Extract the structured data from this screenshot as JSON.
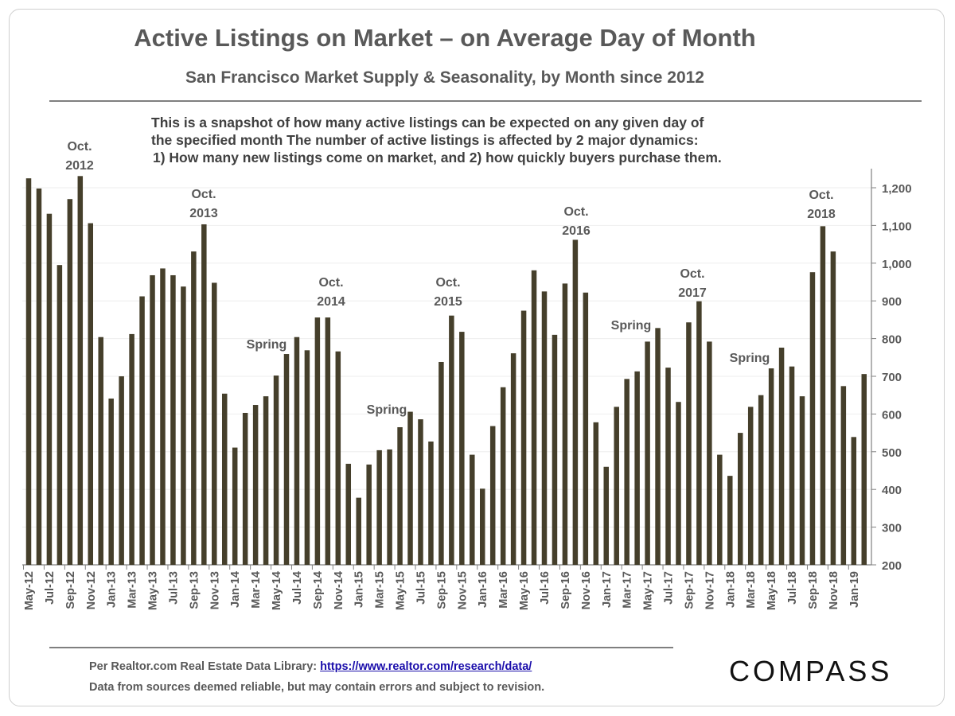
{
  "title": "Active Listings on Market – on Average Day of Month",
  "subtitle": "San Francisco Market Supply & Seasonality, by Month since 2012",
  "note": {
    "line1": "This is a snapshot of how many active listings can be expected on any given day of",
    "line2": "the specified month  The number of active listings is affected by 2 major dynamics:",
    "line3": "1) How many new listings come on market, and 2) how quickly buyers purchase them."
  },
  "footer": {
    "source_prefix": "Per Realtor.com Real Estate  Data Library: ",
    "source_link": "https://www.realtor.com/research/data/",
    "disclaimer": "Data from sources  deemed reliable, but may contain errors and subject to revision.",
    "logo": "COMPASS"
  },
  "colors": {
    "bar": "#453f2b",
    "text": "#595959",
    "grid": "#eeeeee",
    "axis": "#808080"
  },
  "chart_data": {
    "type": "bar",
    "title": "Active Listings on Market – on Average Day of Month",
    "xlabel": "",
    "ylabel": "",
    "ylim": [
      200,
      1200
    ],
    "yticks": [
      "200",
      "300",
      "400",
      "500",
      "600",
      "700",
      "800",
      "900",
      "1,000",
      "1,100",
      "1,200"
    ],
    "y_axis_position": "right",
    "grid": true,
    "categories": [
      "May-12",
      "Jun-12",
      "Jul-12",
      "Aug-12",
      "Sep-12",
      "Oct-12",
      "Nov-12",
      "Dec-12",
      "Jan-13",
      "Feb-13",
      "Mar-13",
      "Apr-13",
      "May-13",
      "Jun-13",
      "Jul-13",
      "Aug-13",
      "Sep-13",
      "Oct-13",
      "Nov-13",
      "Dec-13",
      "Jan-14",
      "Feb-14",
      "Mar-14",
      "Apr-14",
      "May-14",
      "Jun-14",
      "Jul-14",
      "Aug-14",
      "Sep-14",
      "Oct-14",
      "Nov-14",
      "Dec-14",
      "Jan-15",
      "Feb-15",
      "Mar-15",
      "Apr-15",
      "May-15",
      "Jun-15",
      "Jul-15",
      "Aug-15",
      "Sep-15",
      "Oct-15",
      "Nov-15",
      "Dec-15",
      "Jan-16",
      "Feb-16",
      "Mar-16",
      "Apr-16",
      "May-16",
      "Jun-16",
      "Jul-16",
      "Aug-16",
      "Sep-16",
      "Oct-16",
      "Nov-16",
      "Dec-16",
      "Jan-17",
      "Feb-17",
      "Mar-17",
      "Apr-17",
      "May-17",
      "Jun-17",
      "Jul-17",
      "Aug-17",
      "Sep-17",
      "Oct-17",
      "Nov-17",
      "Dec-17",
      "Jan-18",
      "Feb-18",
      "Mar-18",
      "Apr-18",
      "May-18",
      "Jun-18",
      "Jul-18",
      "Aug-18",
      "Sep-18",
      "Oct-18",
      "Nov-18",
      "Dec-18",
      "Jan-19",
      "Feb-19"
    ],
    "values": [
      1225,
      1198,
      1131,
      995,
      1170,
      1231,
      1106,
      804,
      641,
      700,
      812,
      912,
      968,
      986,
      968,
      938,
      1031,
      1103,
      948,
      654,
      511,
      603,
      624,
      647,
      702,
      759,
      804,
      769,
      856,
      856,
      766,
      468,
      378,
      466,
      504,
      506,
      565,
      606,
      586,
      527,
      738,
      861,
      818,
      492,
      402,
      568,
      671,
      761,
      874,
      981,
      925,
      810,
      946,
      1062,
      922,
      578,
      460,
      619,
      693,
      713,
      792,
      828,
      723,
      632,
      843,
      899,
      792,
      492,
      436,
      550,
      619,
      650,
      721,
      776,
      726,
      647,
      976,
      1098,
      1031,
      674,
      539,
      706
    ],
    "annotations": [
      {
        "text1": "Oct.",
        "text2": "2012"
      },
      {
        "text1": "Oct.",
        "text2": "2013"
      },
      {
        "text1": "Spring",
        "text2": ""
      },
      {
        "text1": "Oct.",
        "text2": "2014"
      },
      {
        "text1": "Spring",
        "text2": ""
      },
      {
        "text1": "Oct.",
        "text2": "2015"
      },
      {
        "text1": "Oct.",
        "text2": "2016"
      },
      {
        "text1": "Spring",
        "text2": ""
      },
      {
        "text1": "Oct.",
        "text2": "2017"
      },
      {
        "text1": "Spring",
        "text2": ""
      },
      {
        "text1": "Oct.",
        "text2": "2018"
      }
    ]
  }
}
